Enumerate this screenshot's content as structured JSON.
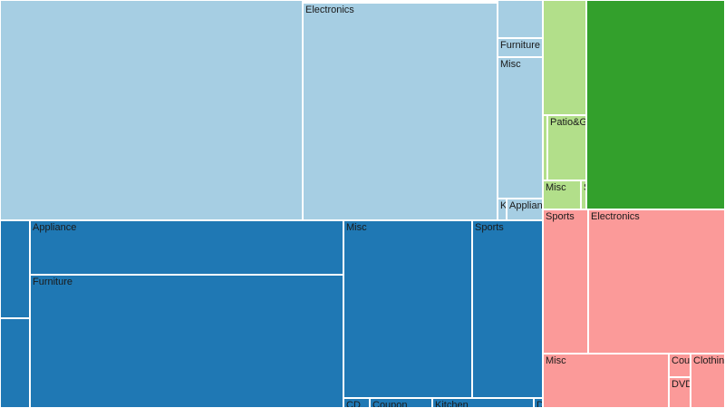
{
  "chart_data": {
    "type": "treemap",
    "title": "",
    "groups": [
      {
        "color": "#a6cee3",
        "items": [
          {
            "label": "",
            "value": 80300
          },
          {
            "label": "Electronics",
            "value": 52100
          },
          {
            "label": "",
            "value": 1900
          },
          {
            "label": "Furniture",
            "value": 900
          },
          {
            "label": "Misc",
            "value": 7100
          },
          {
            "label": "K",
            "value": 400
          },
          {
            "label": "Applian",
            "value": 900
          }
        ]
      },
      {
        "color": "#b2df8a",
        "items": [
          {
            "label": "",
            "value": 6200
          },
          {
            "label": "I",
            "value": 300
          },
          {
            "label": "Patio&G",
            "value": 2800
          },
          {
            "label": "Misc",
            "value": 1300
          },
          {
            "label": "S",
            "value": 200
          }
        ]
      },
      {
        "color": "#33a02c",
        "items": [
          {
            "label": "",
            "value": 35900
          }
        ]
      },
      {
        "color": "#1f78b4",
        "items": [
          {
            "label": "",
            "value": 3600
          },
          {
            "label": "",
            "value": 3300
          },
          {
            "label": "Appliance",
            "value": 20400
          },
          {
            "label": "Furniture",
            "value": 51000
          },
          {
            "label": "Misc",
            "value": 27700
          },
          {
            "label": "Sports",
            "value": 15200
          },
          {
            "label": "CD",
            "value": 700
          },
          {
            "label": "Coupon",
            "value": 1500
          },
          {
            "label": "Kitchen",
            "value": 2000
          },
          {
            "label": "D",
            "value": 200
          }
        ]
      },
      {
        "color": "#fb9a99",
        "items": [
          {
            "label": "Sports",
            "value": 7900
          },
          {
            "label": "Electronics",
            "value": 23600
          },
          {
            "label": "Misc",
            "value": 8300
          },
          {
            "label": "Cou",
            "value": 600
          },
          {
            "label": "DVD",
            "value": 800
          },
          {
            "label": "Clothin",
            "value": 2300
          }
        ]
      }
    ]
  }
}
